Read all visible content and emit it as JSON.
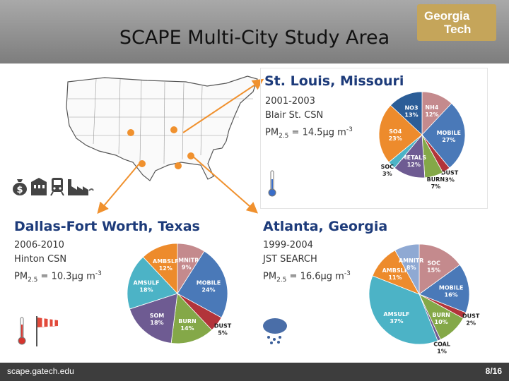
{
  "header": {
    "title": "SCAPE Multi-City Study Area",
    "logo_line1": "Georgia",
    "logo_line2": "Tech"
  },
  "stlouis": {
    "name": "St. Louis, Missouri",
    "years": "2001-2003",
    "site": "Blair St. CSN",
    "pm_value": "14.5",
    "pm_unit": "μg m",
    "pm_exp": "-3"
  },
  "dallas": {
    "name": "Dallas-Fort Worth, Texas",
    "years": "2006-2010",
    "site": "Hinton CSN",
    "pm_value": "10.3",
    "pm_unit": "μg m",
    "pm_exp": "-3"
  },
  "atlanta": {
    "name": "Atlanta, Georgia",
    "years": "1999-2004",
    "site": "JST SEARCH",
    "pm_value": "16.6",
    "pm_unit": "μg m",
    "pm_exp": "-3"
  },
  "pm_prefix": "PM",
  "pm_sub": "2.5",
  "pm_eq": " = ",
  "footer": {
    "url": "scape.gatech.edu",
    "page": "8/16"
  },
  "icons": [
    "money-icon",
    "building-icon",
    "train-icon",
    "factory-icon",
    "thermometer-icon",
    "windsock-icon",
    "rain-cloud-icon"
  ],
  "chart_data": [
    {
      "type": "pie",
      "title": "St. Louis, Missouri",
      "slices": [
        {
          "name": "NH4",
          "value": 12,
          "color": "#c48a8d"
        },
        {
          "name": "MOBILE",
          "value": 27,
          "color": "#4a79b8"
        },
        {
          "name": "DUST",
          "value": 3,
          "color": "#b2343a"
        },
        {
          "name": "BURN",
          "value": 7,
          "color": "#84a848"
        },
        {
          "name": "METALS",
          "value": 12,
          "color": "#6e5b92"
        },
        {
          "name": "SOC",
          "value": 3,
          "color": "#4cb3c6"
        },
        {
          "name": "SO4",
          "value": 23,
          "color": "#ed8b2c"
        },
        {
          "name": "NO3",
          "value": 13,
          "color": "#2b5d97"
        }
      ]
    },
    {
      "type": "pie",
      "title": "Dallas-Fort Worth, Texas",
      "slices": [
        {
          "name": "AMNITR",
          "value": 9,
          "color": "#c48a8d"
        },
        {
          "name": "MOBILE",
          "value": 24,
          "color": "#4a79b8"
        },
        {
          "name": "DUST",
          "value": 5,
          "color": "#b2343a"
        },
        {
          "name": "BURN",
          "value": 14,
          "color": "#84a848"
        },
        {
          "name": "SOM",
          "value": 18,
          "color": "#6e5b92"
        },
        {
          "name": "AMSULF",
          "value": 18,
          "color": "#4cb3c6"
        },
        {
          "name": "AMBSLF",
          "value": 12,
          "color": "#ed8b2c"
        }
      ]
    },
    {
      "type": "pie",
      "title": "Atlanta, Georgia",
      "slices": [
        {
          "name": "SOC",
          "value": 15,
          "color": "#c48a8d"
        },
        {
          "name": "MOBILE",
          "value": 16,
          "color": "#4a79b8"
        },
        {
          "name": "DUST",
          "value": 2,
          "color": "#b2343a"
        },
        {
          "name": "BURN",
          "value": 10,
          "color": "#84a848"
        },
        {
          "name": "COAL",
          "value": 1,
          "color": "#6e5b92"
        },
        {
          "name": "AMSULF",
          "value": 37,
          "color": "#4cb3c6"
        },
        {
          "name": "AMBSLF",
          "value": 11,
          "color": "#ed8b2c"
        },
        {
          "name": "AMNITR",
          "value": 8,
          "color": "#8fa9d3"
        }
      ]
    }
  ]
}
